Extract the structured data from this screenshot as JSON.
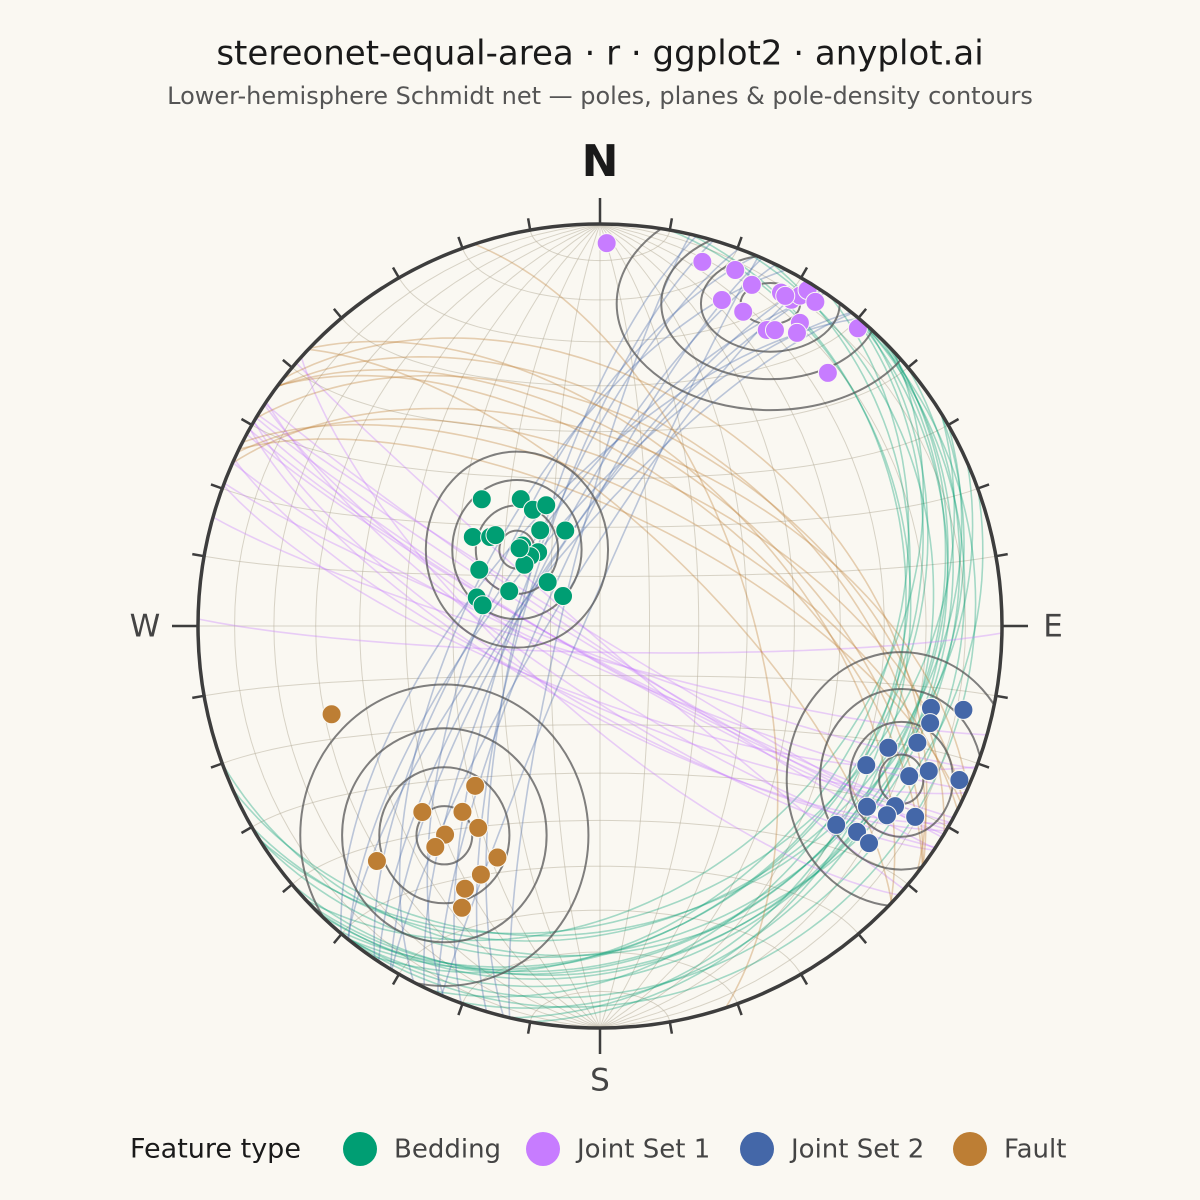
{
  "chart_data": {
    "type": "stereonet",
    "title": "stereonet-equal-area · r · ggplot2 · anyplot.ai",
    "subtitle": "Lower-hemisphere Schmidt net — poles, planes & pole-density contours",
    "directions": {
      "north": "N",
      "east": "E",
      "south": "S",
      "west": "W"
    },
    "legend_title": "Feature type",
    "legend_position": "bottom",
    "grid": true,
    "series": [
      {
        "name": "Bedding",
        "color": "#009e73",
        "trend": [
          317,
          328,
          330,
          336,
          305,
          309,
          311,
          328,
          340,
          316,
          320,
          315,
          309,
          295,
          310,
          291,
          283,
          280,
          309,
          314
        ],
        "plunge": [
          54.5,
          59.5,
          62.7,
          63.1,
          58.3,
          61.2,
          61.8,
          67.1,
          69.4,
          67.3,
          70.5,
          70,
          70.3,
          62.9,
          76.2,
          70.3,
          64.3,
          65.8,
          80.4,
          67.3
        ]
      },
      {
        "name": "Joint Set 1",
        "color": "#c77cff",
        "trend": [
          1,
          15.7,
          20.8,
          24,
          20.5,
          28.5,
          30.4,
          31.2,
          31.7,
          33.6,
          24.5,
          29.4,
          30.6,
          33.4,
          33.9,
          40.9,
          42,
          29.3
        ],
        "plunge": [
          5.3,
          6.6,
          5.9,
          7.9,
          14.5,
          6.3,
          6.6,
          4.4,
          2,
          3.6,
          15.2,
          16.6,
          15.6,
          10.6,
          13.2,
          2.3,
          16.4,
          6.5
        ]
      },
      {
        "name": "Joint Set 2",
        "color": "#4467a8",
        "trend": [
          103.9,
          103,
          106.4,
          112.9,
          110.2,
          117.6,
          115.9,
          113.8,
          113.2,
          124.1,
          121.4,
          123.4,
          121.2,
          130.1,
          128.7,
          128.9
        ],
        "plunge": [
          16.3,
          8,
          15.5,
          23.2,
          17,
          26.2,
          15.6,
          11.6,
          3.1,
          20.9,
          15.1,
          15.6,
          9.2,
          24.2,
          19.2,
          15.1
        ]
      },
      {
        "name": "Fault",
        "color": "#bd7e34",
        "trend": [
          251.8,
          218,
          223.7,
          216.5,
          211.1,
          216.6,
          216.7,
          223.5,
          203.9,
          205.6,
          207.2,
          206.1
        ],
        "plunge": [
          30.4,
          48.2,
          36.2,
          42,
          41,
          35.6,
          32,
          20.5,
          37.1,
          32,
          27.4,
          23
        ]
      }
    ]
  }
}
